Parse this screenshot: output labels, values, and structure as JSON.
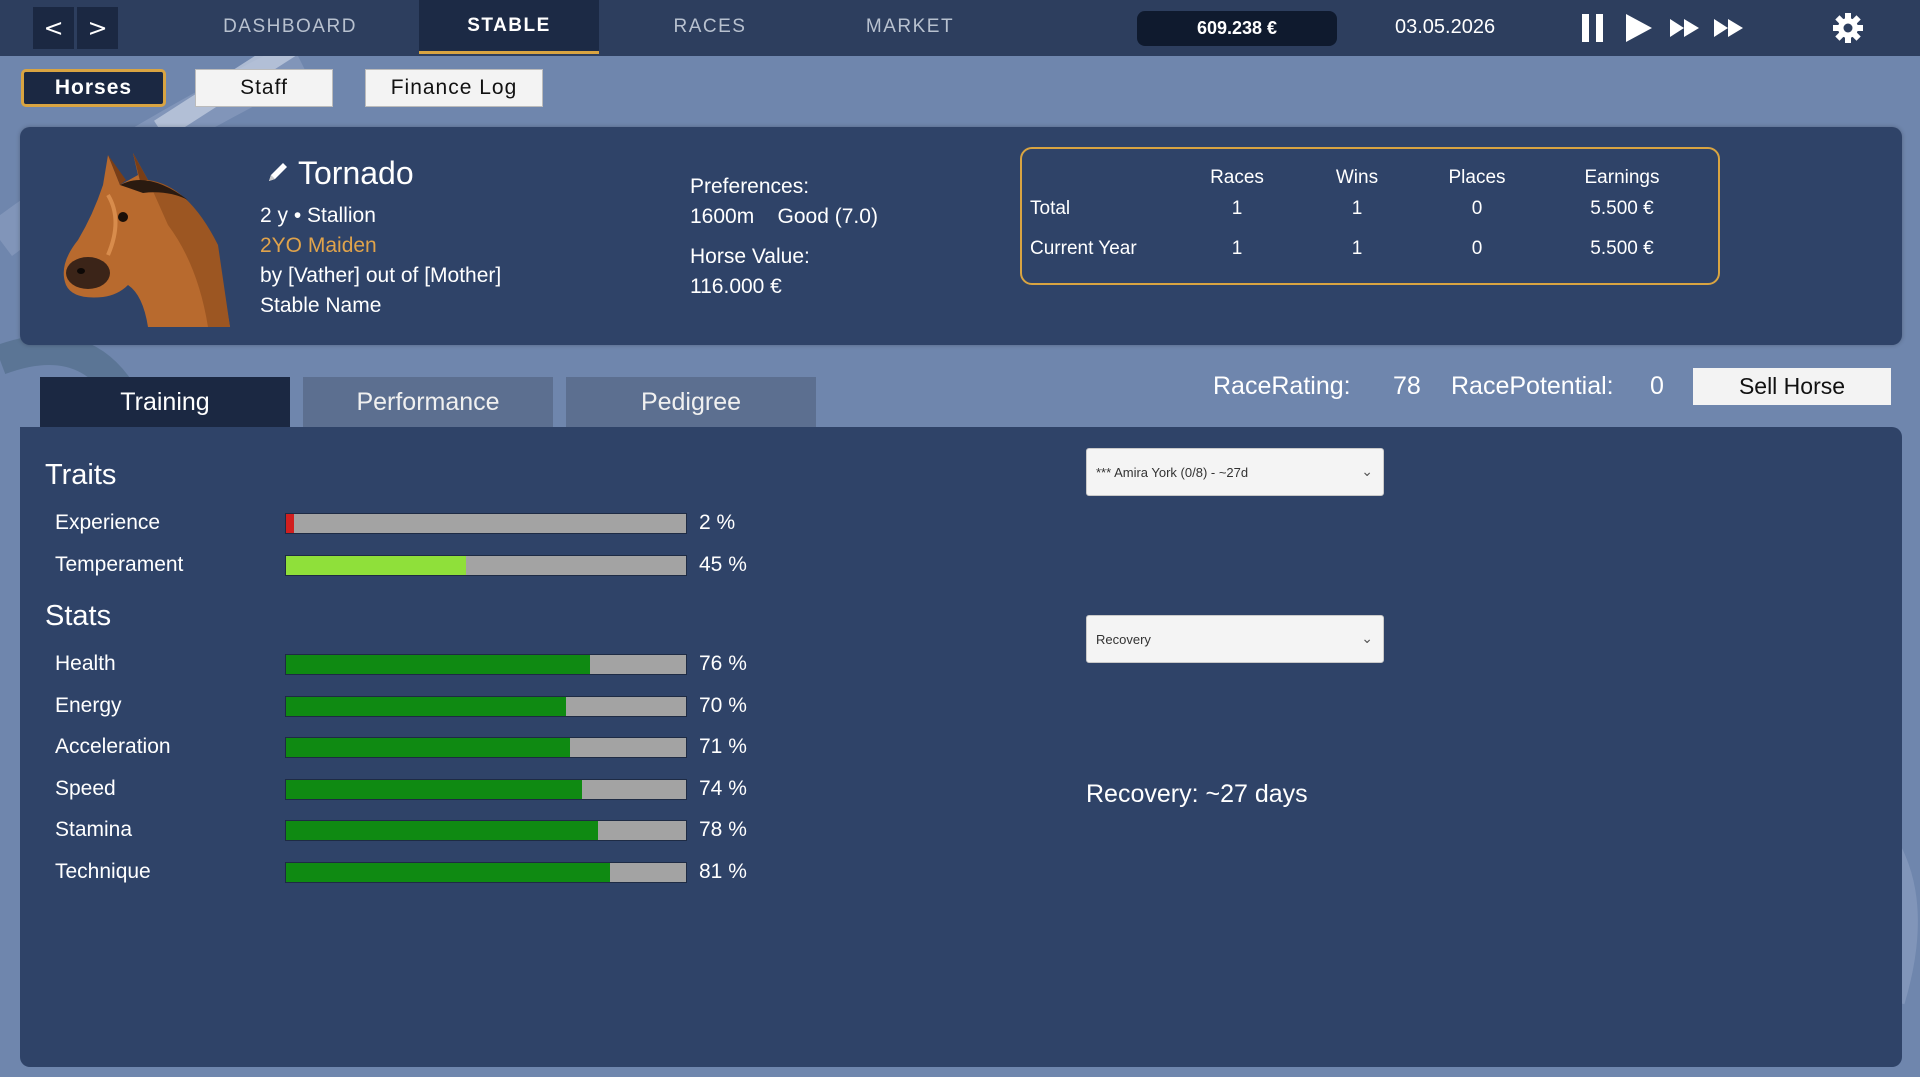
{
  "nav": {
    "back": "<",
    "forward": ">",
    "tabs": [
      {
        "label": "DASHBOARD"
      },
      {
        "label": "STABLE"
      },
      {
        "label": "RACES"
      },
      {
        "label": "MARKET"
      }
    ],
    "active_tab": "STABLE",
    "balance": "609.238 €",
    "date": "03.05.2026",
    "controls": [
      "pause-icon",
      "play-icon",
      "fast-forward-icon",
      "fastest-forward-icon",
      "gear-icon"
    ]
  },
  "subnav": {
    "buttons": [
      {
        "label": "Horses"
      },
      {
        "label": "Staff"
      },
      {
        "label": "Finance Log"
      }
    ],
    "active": "Horses"
  },
  "horse": {
    "name": "Tornado",
    "age_sex": "2 y  •  Stallion",
    "class": "2YO Maiden",
    "parents": "by [Vather] out of [Mother]",
    "stable": "Stable Name",
    "preferences_label": "Preferences:",
    "preferences_value": "1600m    Good (7.0)",
    "value_label": "Horse Value:",
    "value": "116.000 €"
  },
  "record": {
    "headers": [
      "Races",
      "Wins",
      "Places",
      "Earnings"
    ],
    "rows": [
      {
        "label": "Total",
        "values": [
          "1",
          "1",
          "0",
          "5.500 €"
        ]
      },
      {
        "label": "Current Year",
        "values": [
          "1",
          "1",
          "0",
          "5.500 €"
        ]
      }
    ]
  },
  "tabs": [
    {
      "label": "Training"
    },
    {
      "label": "Performance"
    },
    {
      "label": "Pedigree"
    }
  ],
  "active_tab": "Training",
  "rating": {
    "race_rating_label": "RaceRating:",
    "race_rating": "78",
    "race_potential_label": "RacePotential:",
    "race_potential": "0",
    "sell_label": "Sell Horse"
  },
  "traits": {
    "title": "Traits",
    "items": [
      {
        "label": "Experience",
        "pct_text": "2 %",
        "value": 2,
        "color": "#d11f1f"
      },
      {
        "label": "Temperament",
        "pct_text": "45 %",
        "value": 45,
        "color": "#8fe03a"
      }
    ]
  },
  "stats": {
    "title": "Stats",
    "items": [
      {
        "label": "Health",
        "pct_text": "76 %",
        "value": 76
      },
      {
        "label": "Energy",
        "pct_text": "70 %",
        "value": 70
      },
      {
        "label": "Acceleration",
        "pct_text": "71 %",
        "value": 71
      },
      {
        "label": "Speed",
        "pct_text": "74 %",
        "value": 74
      },
      {
        "label": "Stamina",
        "pct_text": "78 %",
        "value": 78
      },
      {
        "label": "Technique",
        "pct_text": "81 %",
        "value": 81
      }
    ],
    "color": "#0f8a12"
  },
  "training": {
    "trainer_select": "*** Amira York (0/8) - ~27d",
    "program_select": "Recovery",
    "recovery_text": "Recovery: ~27 days"
  },
  "colors": {
    "accent": "#d9a441",
    "panel": "#2f4368",
    "topbar": "#2d3e5e",
    "background": "#6f86ad"
  }
}
